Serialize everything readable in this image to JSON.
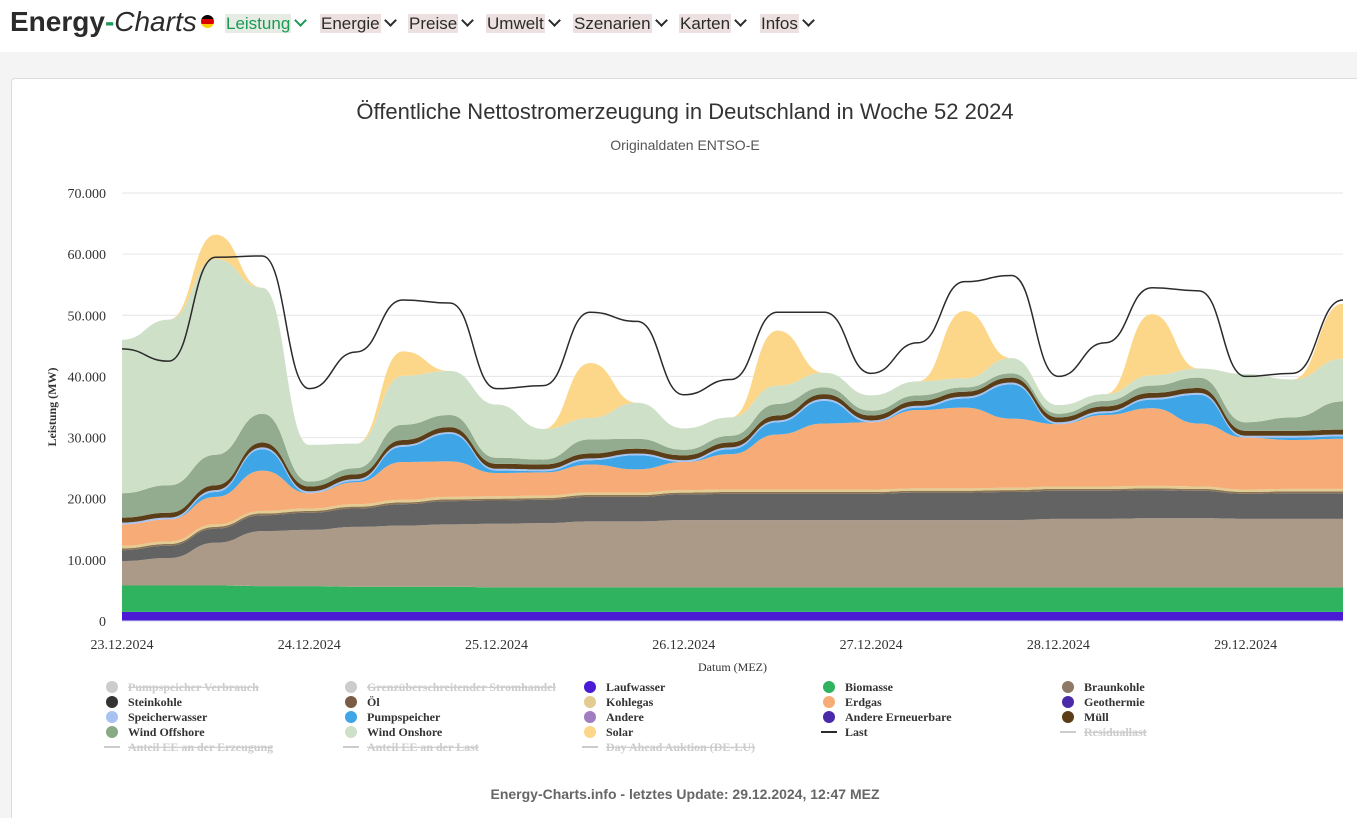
{
  "header": {
    "brand_main": "Energy",
    "brand_dash": "-",
    "brand_italic": "Charts",
    "flag_colors": [
      "#000000",
      "#dd0000",
      "#ffce00"
    ],
    "nav": [
      {
        "label": "Leistung",
        "active": true
      },
      {
        "label": "Energie",
        "active": false
      },
      {
        "label": "Preise",
        "active": false
      },
      {
        "label": "Umwelt",
        "active": false
      },
      {
        "label": "Szenarien",
        "active": false
      },
      {
        "label": "Karten",
        "active": false
      },
      {
        "label": "Infos",
        "active": false
      }
    ]
  },
  "footer": "Energy-Charts.info - letztes Update: 29.12.2024, 12:47 MEZ",
  "chart_data": {
    "type": "area",
    "title": "Öffentliche Nettostromerzeugung in Deutschland in Woche 52 2024",
    "subtitle": "Originaldaten ENTSO-E",
    "xlabel": "Datum (MEZ)",
    "ylabel": "Leistung (MW)",
    "ylim": [
      0,
      70000
    ],
    "yticks": [
      0,
      10000,
      20000,
      30000,
      40000,
      50000,
      60000,
      70000
    ],
    "ytick_labels": [
      "0",
      "10.000",
      "20.000",
      "30.000",
      "40.000",
      "50.000",
      "60.000",
      "70.000"
    ],
    "xlim": [
      0,
      6.52
    ],
    "xticks": [
      0,
      1,
      2,
      3,
      4,
      5,
      6
    ],
    "xtick_labels": [
      "23.12.2024",
      "24.12.2024",
      "25.12.2024",
      "26.12.2024",
      "27.12.2024",
      "28.12.2024",
      "29.12.2024"
    ],
    "grid": true,
    "legend_position": "bottom",
    "x": [
      0,
      0.25,
      0.5,
      0.75,
      1,
      1.25,
      1.5,
      1.75,
      2,
      2.25,
      2.5,
      2.75,
      3,
      3.25,
      3.5,
      3.75,
      4,
      4.25,
      4.5,
      4.75,
      5,
      5.25,
      5.5,
      5.75,
      6,
      6.25,
      6.52
    ],
    "series": [
      {
        "name": "Laufwasser",
        "color": "#4a1ad4",
        "values": [
          1500,
          1500,
          1500,
          1500,
          1500,
          1500,
          1500,
          1500,
          1500,
          1500,
          1500,
          1500,
          1500,
          1500,
          1500,
          1500,
          1500,
          1500,
          1500,
          1500,
          1500,
          1500,
          1500,
          1500,
          1500,
          1500,
          1500
        ]
      },
      {
        "name": "Biomasse",
        "color": "#2fb35f",
        "values": [
          4300,
          4300,
          4300,
          4200,
          4200,
          4100,
          4100,
          4100,
          4000,
          4000,
          4000,
          4000,
          4000,
          4000,
          4000,
          4000,
          4000,
          4000,
          4000,
          4000,
          4000,
          4000,
          4000,
          4000,
          4000,
          4000,
          4000
        ]
      },
      {
        "name": "Braunkohle",
        "color": "#ab9a87",
        "values": [
          4000,
          4500,
          7000,
          9000,
          9200,
          9800,
          10000,
          10200,
          10400,
          10500,
          10800,
          10800,
          11000,
          11000,
          11000,
          11000,
          11000,
          11000,
          11000,
          11000,
          11200,
          11200,
          11300,
          11300,
          11200,
          11200,
          11200
        ]
      },
      {
        "name": "Steinkohle",
        "color": "#636363",
        "values": [
          1800,
          2000,
          2300,
          2600,
          2800,
          3000,
          3500,
          3800,
          3800,
          3800,
          4000,
          4000,
          4200,
          4300,
          4300,
          4300,
          4300,
          4500,
          4500,
          4600,
          4600,
          4600,
          4600,
          4500,
          4100,
          4200,
          4200
        ]
      },
      {
        "name": "Öl",
        "color": "#8b7355",
        "values": [
          300,
          300,
          300,
          300,
          300,
          300,
          300,
          300,
          300,
          300,
          300,
          300,
          300,
          300,
          300,
          300,
          300,
          300,
          300,
          300,
          300,
          300,
          300,
          300,
          300,
          300,
          300
        ]
      },
      {
        "name": "Kohlegas",
        "color": "#e3cc91",
        "values": [
          400,
          400,
          400,
          400,
          400,
          400,
          400,
          400,
          400,
          400,
          400,
          400,
          400,
          400,
          400,
          400,
          400,
          400,
          400,
          400,
          400,
          400,
          400,
          400,
          400,
          400,
          400
        ]
      },
      {
        "name": "Erdgas",
        "color": "#f7ac78",
        "values": [
          3500,
          3600,
          4500,
          6600,
          2500,
          3600,
          6200,
          5800,
          3800,
          3800,
          4600,
          3800,
          4600,
          5800,
          9000,
          10800,
          11000,
          12800,
          13200,
          11300,
          10200,
          11700,
          12700,
          10300,
          8500,
          8000,
          8200
        ]
      },
      {
        "name": "Pumpspeicher",
        "color": "#3ea6e6",
        "values": [
          0,
          0,
          800,
          3500,
          0,
          200,
          2500,
          4500,
          400,
          200,
          700,
          2300,
          0,
          800,
          2000,
          3700,
          0,
          400,
          1500,
          5600,
          0,
          300,
          1400,
          4700,
          0,
          400,
          400
        ]
      },
      {
        "name": "Speicherwasser",
        "color": "#a6c3f2",
        "values": [
          300,
          300,
          300,
          300,
          300,
          300,
          300,
          300,
          300,
          300,
          300,
          300,
          300,
          300,
          300,
          300,
          300,
          300,
          300,
          300,
          300,
          300,
          300,
          300,
          300,
          300,
          300
        ]
      },
      {
        "name": "Müll",
        "color": "#5b3e17",
        "values": [
          800,
          800,
          800,
          800,
          800,
          800,
          800,
          800,
          800,
          800,
          800,
          800,
          800,
          800,
          800,
          800,
          800,
          800,
          800,
          800,
          800,
          800,
          800,
          800,
          800,
          800,
          800
        ]
      },
      {
        "name": "Wind Offshore",
        "color": "#93ab8e",
        "values": [
          4000,
          4500,
          5000,
          4700,
          800,
          1000,
          2500,
          2000,
          1000,
          800,
          2300,
          1600,
          900,
          1100,
          1900,
          1100,
          800,
          900,
          700,
          700,
          600,
          900,
          1200,
          1700,
          1400,
          2200,
          4600
        ]
      },
      {
        "name": "Wind Onshore",
        "color": "#cfe0c9",
        "values": [
          25100,
          27100,
          32000,
          20600,
          6000,
          4000,
          8000,
          7200,
          8700,
          5000,
          3500,
          5900,
          3500,
          3000,
          3000,
          2400,
          2500,
          2300,
          1500,
          2500,
          1400,
          1100,
          1700,
          1500,
          7900,
          6200,
          7000
        ]
      },
      {
        "name": "Solar",
        "color": "#fcd78a",
        "values": [
          0,
          0,
          4000,
          0,
          0,
          0,
          4000,
          0,
          0,
          0,
          9000,
          0,
          0,
          0,
          9000,
          0,
          0,
          0,
          11000,
          0,
          0,
          0,
          10000,
          0,
          0,
          0,
          9000
        ]
      }
    ],
    "last": {
      "name": "Last",
      "color": "#2b2b2b",
      "values": [
        44500,
        42500,
        59500,
        59700,
        38000,
        44000,
        52500,
        52000,
        38000,
        38500,
        50500,
        49000,
        37000,
        39500,
        50500,
        50500,
        40500,
        45500,
        55500,
        56500,
        40000,
        45500,
        54500,
        54000,
        40000,
        40500,
        52500
      ]
    },
    "legend": [
      {
        "name": "Pumpspeicher Verbrauch",
        "color": "#cccccc",
        "marker": "dot",
        "hidden": true
      },
      {
        "name": "Grenzüberschreitender Stromhandel",
        "color": "#cccccc",
        "marker": "dot",
        "hidden": true
      },
      {
        "name": "Laufwasser",
        "color": "#4a1ad4",
        "marker": "dot",
        "hidden": false
      },
      {
        "name": "Biomasse",
        "color": "#2fb35f",
        "marker": "dot",
        "hidden": false
      },
      {
        "name": "Braunkohle",
        "color": "#8c7a66",
        "marker": "dot",
        "hidden": false
      },
      {
        "name": "Steinkohle",
        "color": "#333333",
        "marker": "dot",
        "hidden": false
      },
      {
        "name": "Öl",
        "color": "#7a5c44",
        "marker": "dot",
        "hidden": false
      },
      {
        "name": "Kohlegas",
        "color": "#e3cc91",
        "marker": "dot",
        "hidden": false
      },
      {
        "name": "Erdgas",
        "color": "#f7ac78",
        "marker": "dot",
        "hidden": false
      },
      {
        "name": "Geothermie",
        "color": "#4a2aa8",
        "marker": "dot",
        "hidden": false
      },
      {
        "name": "Speicherwasser",
        "color": "#a6c3f2",
        "marker": "dot",
        "hidden": false
      },
      {
        "name": "Pumpspeicher",
        "color": "#3ea6e6",
        "marker": "dot",
        "hidden": false
      },
      {
        "name": "Andere",
        "color": "#a07cc0",
        "marker": "dot",
        "hidden": false
      },
      {
        "name": "Andere Erneuerbare",
        "color": "#4a2aa8",
        "marker": "dot",
        "hidden": false
      },
      {
        "name": "Müll",
        "color": "#5b3e17",
        "marker": "dot",
        "hidden": false
      },
      {
        "name": "Wind Offshore",
        "color": "#8aaa86",
        "marker": "dot",
        "hidden": false
      },
      {
        "name": "Wind Onshore",
        "color": "#cfe0c9",
        "marker": "dot",
        "hidden": false
      },
      {
        "name": "Solar",
        "color": "#fcd78a",
        "marker": "dot",
        "hidden": false
      },
      {
        "name": "Last",
        "color": "#2b2b2b",
        "marker": "line",
        "hidden": false
      },
      {
        "name": "Residuallast",
        "color": "#cccccc",
        "marker": "line",
        "hidden": true
      },
      {
        "name": "Anteil EE an der Erzeugung",
        "color": "#cccccc",
        "marker": "line",
        "hidden": true
      },
      {
        "name": "Anteil EE an der Last",
        "color": "#cccccc",
        "marker": "line",
        "hidden": true
      },
      {
        "name": "Day Ahead Auktion (DE-LU)",
        "color": "#cccccc",
        "marker": "line",
        "hidden": true
      }
    ]
  }
}
